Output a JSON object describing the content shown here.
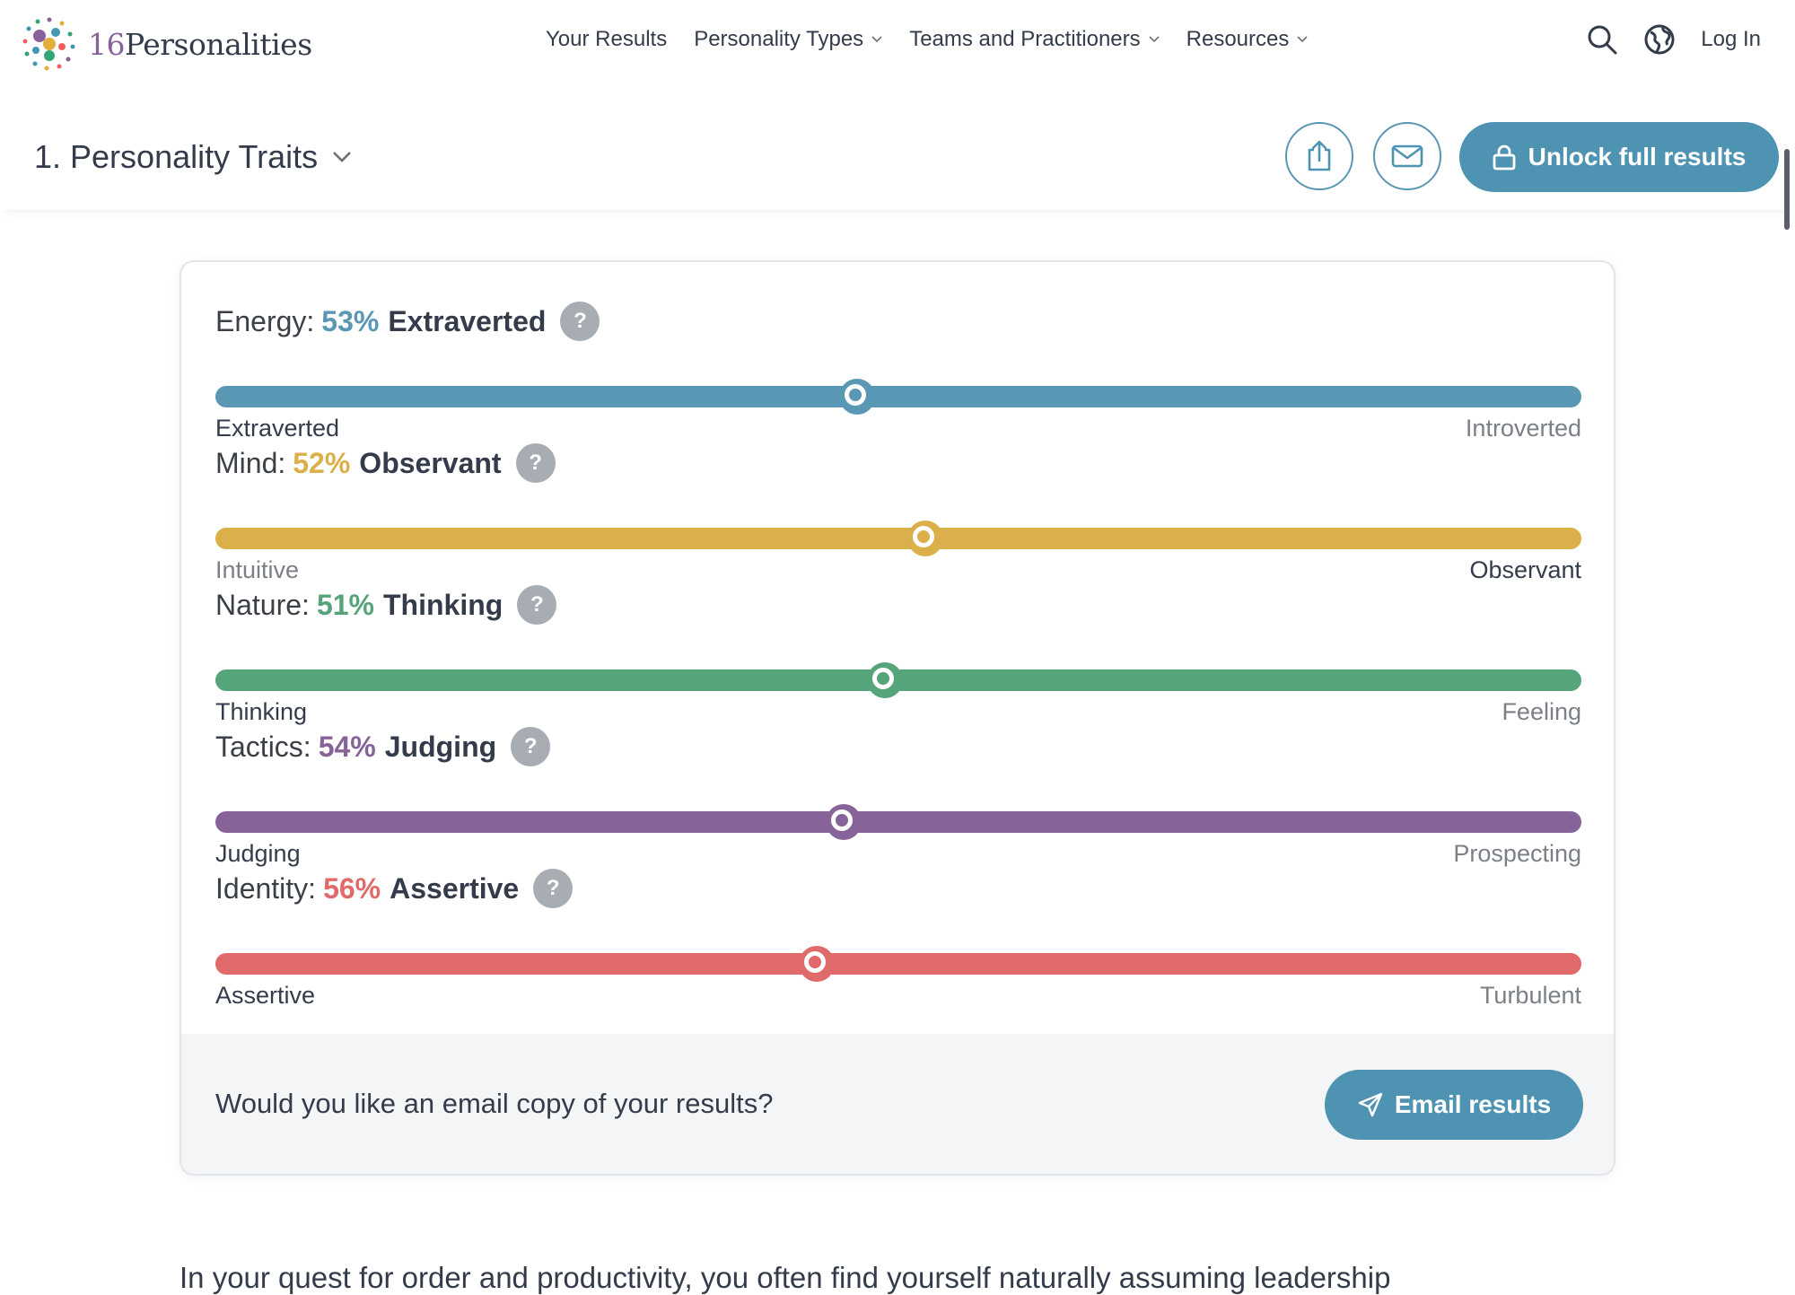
{
  "brand": {
    "logo_number": "16",
    "logo_word": "Personalities",
    "dot_colors": [
      "#88619a",
      "#4298b4",
      "#e4ae3a",
      "#33a474",
      "#f25e62"
    ]
  },
  "nav": {
    "links": [
      {
        "label": "Your Results",
        "has_dropdown": false
      },
      {
        "label": "Personality Types",
        "has_dropdown": true
      },
      {
        "label": "Teams and Practitioners",
        "has_dropdown": true
      },
      {
        "label": "Resources",
        "has_dropdown": true
      }
    ],
    "icons": [
      "search-icon",
      "globe-icon"
    ],
    "login_label": "Log In"
  },
  "section": {
    "title": "1. Personality Traits",
    "share_icon": "share-icon",
    "mail_icon": "mail-icon",
    "unlock_label": "Unlock full results",
    "unlock_icon": "lock-icon"
  },
  "traits": [
    {
      "name": "Energy:",
      "percent": "53%",
      "type": "Extraverted",
      "left_pole": "Extraverted",
      "right_pole": "Introverted",
      "active_side": "left",
      "position": 0.47,
      "color": "#5a97b4"
    },
    {
      "name": "Mind:",
      "percent": "52%",
      "type": "Observant",
      "left_pole": "Intuitive",
      "right_pole": "Observant",
      "active_side": "right",
      "position": 0.52,
      "color": "#dbaf49"
    },
    {
      "name": "Nature:",
      "percent": "51%",
      "type": "Thinking",
      "left_pole": "Thinking",
      "right_pole": "Feeling",
      "active_side": "left",
      "position": 0.49,
      "color": "#55a47a"
    },
    {
      "name": "Tactics:",
      "percent": "54%",
      "type": "Judging",
      "left_pole": "Judging",
      "right_pole": "Prospecting",
      "active_side": "left",
      "position": 0.46,
      "color": "#86649a"
    },
    {
      "name": "Identity:",
      "percent": "56%",
      "type": "Assertive",
      "left_pole": "Assertive",
      "right_pole": "Turbulent",
      "active_side": "left",
      "position": 0.44,
      "color": "#e06a69"
    }
  ],
  "help_label": "?",
  "email": {
    "question": "Would you like an email copy of your results?",
    "button_label": "Email results",
    "button_icon": "send-icon"
  },
  "intro_text": "In your quest for order and productivity, you often find yourself naturally assuming leadership"
}
